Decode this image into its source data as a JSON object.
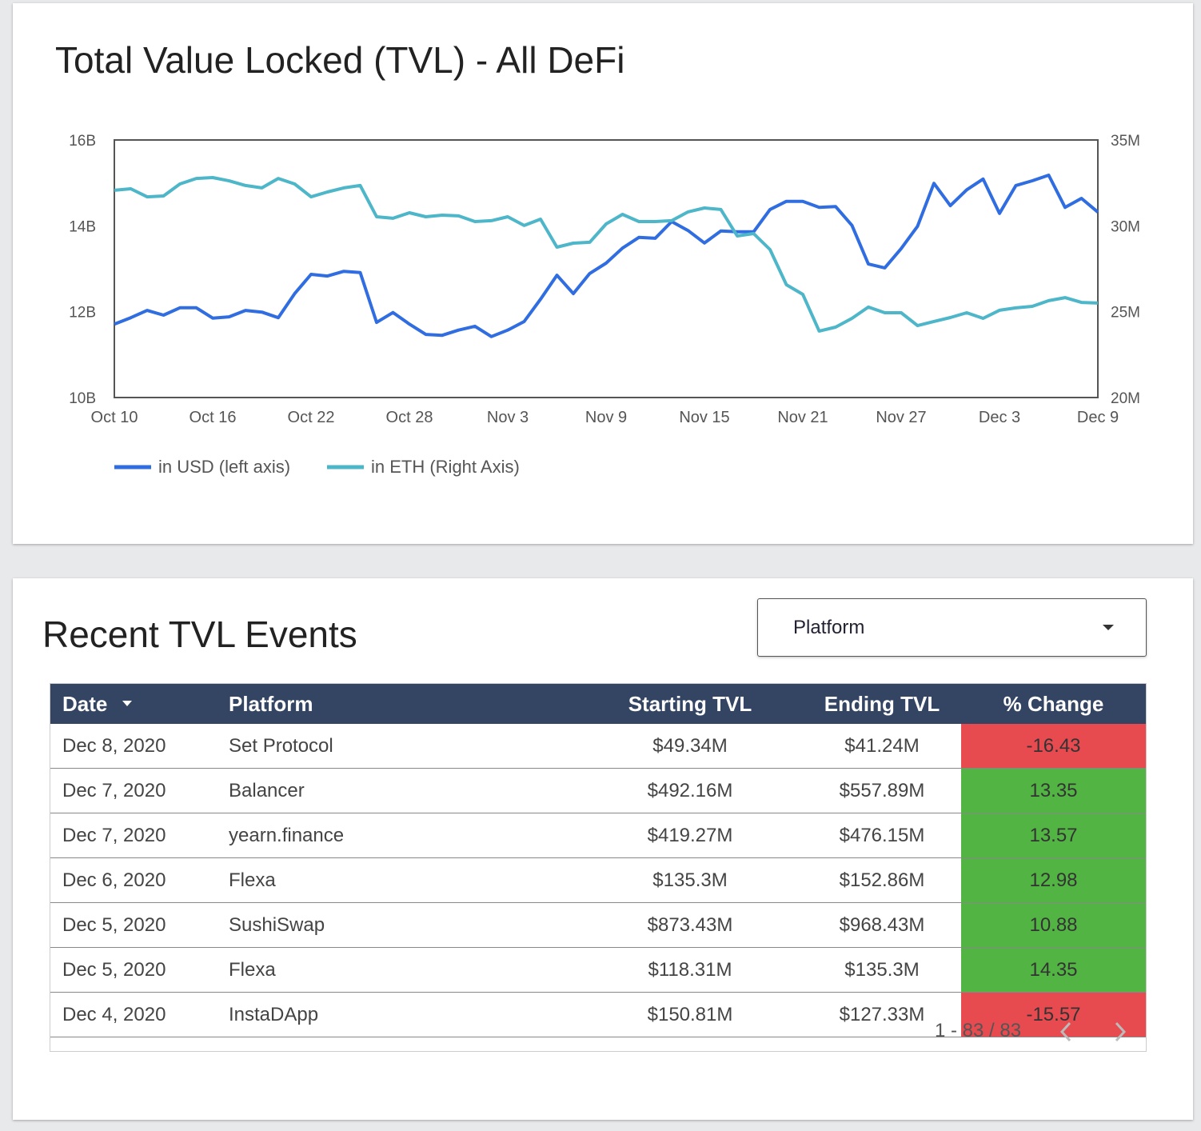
{
  "chart_data": {
    "type": "line",
    "title": "Total Value Locked (TVL) - All DeFi",
    "categories": [
      "Oct 10",
      null,
      null,
      null,
      null,
      null,
      "Oct 16",
      null,
      null,
      null,
      null,
      null,
      "Oct 22",
      null,
      null,
      null,
      null,
      null,
      "Oct 28",
      null,
      null,
      null,
      null,
      null,
      "Nov 3",
      null,
      null,
      null,
      null,
      null,
      "Nov 9",
      null,
      null,
      null,
      null,
      null,
      "Nov 15",
      null,
      null,
      null,
      null,
      null,
      "Nov 21",
      null,
      null,
      null,
      null,
      null,
      "Nov 27",
      null,
      null,
      null,
      null,
      null,
      "Dec 3",
      null,
      null,
      null,
      null,
      null,
      "Dec 9"
    ],
    "series": [
      {
        "name": "in USD (left axis)",
        "color": "#2f6de1",
        "axis": "y",
        "values": [
          11.71,
          11.86,
          12.03,
          11.92,
          12.09,
          12.09,
          11.85,
          11.88,
          12.03,
          11.99,
          11.86,
          12.42,
          12.87,
          12.83,
          12.94,
          12.91,
          11.75,
          11.98,
          11.71,
          11.47,
          11.45,
          11.57,
          11.66,
          11.42,
          11.57,
          11.77,
          12.29,
          12.85,
          12.42,
          12.89,
          13.13,
          13.48,
          13.73,
          13.71,
          14.1,
          13.89,
          13.6,
          13.88,
          13.86,
          13.86,
          14.38,
          14.57,
          14.57,
          14.43,
          14.45,
          14.01,
          13.11,
          13.02,
          13.47,
          13.99,
          14.99,
          14.47,
          14.84,
          15.09,
          14.29,
          14.94,
          15.05,
          15.18,
          14.43,
          14.64,
          14.32
        ]
      },
      {
        "name": "in ETH (Right Axis)",
        "color": "#4db6c9",
        "axis": "y2",
        "values": [
          32.07,
          32.16,
          31.69,
          31.74,
          32.44,
          32.76,
          32.81,
          32.62,
          32.35,
          32.21,
          32.76,
          32.44,
          31.69,
          31.97,
          32.21,
          32.35,
          30.53,
          30.44,
          30.76,
          30.53,
          30.62,
          30.58,
          30.25,
          30.3,
          30.53,
          30.02,
          30.39,
          28.76,
          28.99,
          29.04,
          30.11,
          30.67,
          30.25,
          30.25,
          30.3,
          30.81,
          31.04,
          30.95,
          29.41,
          29.55,
          28.62,
          26.57,
          26.01,
          23.87,
          24.1,
          24.61,
          25.27,
          24.94,
          24.94,
          24.19,
          24.43,
          24.66,
          24.94,
          24.61,
          25.08,
          25.22,
          25.31,
          25.64,
          25.82,
          25.54,
          25.5
        ]
      }
    ],
    "ylim": [
      10,
      16
    ],
    "yticks": [
      {
        "value": 10,
        "label": "10B"
      },
      {
        "value": 12,
        "label": "12B"
      },
      {
        "value": 14,
        "label": "14B"
      },
      {
        "value": 16,
        "label": "16B"
      }
    ],
    "y2lim": [
      20,
      35
    ],
    "y2ticks": [
      {
        "value": 20,
        "label": "20M"
      },
      {
        "value": 25,
        "label": "25M"
      },
      {
        "value": 30,
        "label": "30M"
      },
      {
        "value": 35,
        "label": "35M"
      }
    ],
    "grid": false,
    "legend": "bottom"
  },
  "table_section": {
    "title": "Recent TVL Events",
    "filter": "Platform",
    "columns": [
      "Date",
      "Platform",
      "Starting TVL",
      "Ending TVL",
      "% Change"
    ],
    "rows": [
      [
        "Dec 8, 2020",
        "Set Protocol",
        "$49.34M",
        "$41.24M",
        -16.43
      ],
      [
        "Dec 7, 2020",
        "Balancer",
        "$492.16M",
        "$557.89M",
        13.35
      ],
      [
        "Dec 7, 2020",
        "yearn.finance",
        "$419.27M",
        "$476.15M",
        13.57
      ],
      [
        "Dec 6, 2020",
        "Flexa",
        "$135.3M",
        "$152.86M",
        12.98
      ],
      [
        "Dec 5, 2020",
        "SushiSwap",
        "$873.43M",
        "$968.43M",
        10.88
      ],
      [
        "Dec 5, 2020",
        "Flexa",
        "$118.31M",
        "$135.3M",
        14.35
      ],
      [
        "Dec 4, 2020",
        "InstaDApp",
        "$150.81M",
        "$127.33M",
        -15.57
      ]
    ],
    "pagination": "1 - 83 / 83"
  }
}
